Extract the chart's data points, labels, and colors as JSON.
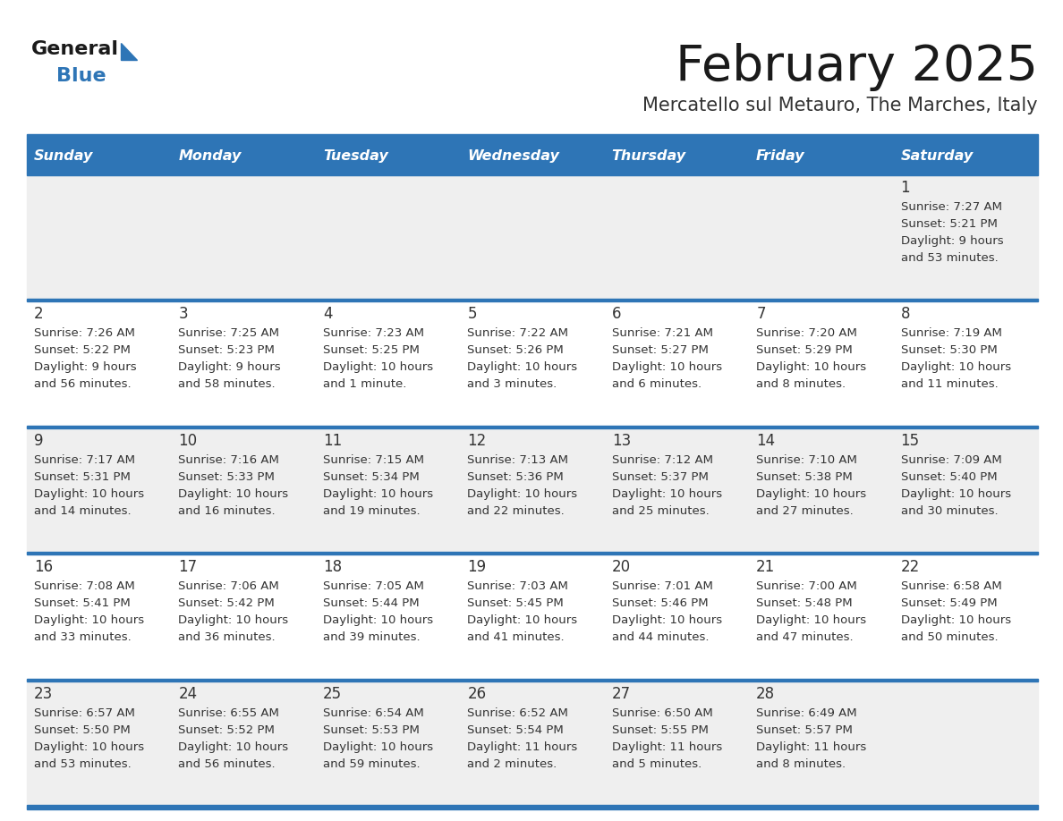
{
  "title": "February 2025",
  "subtitle": "Mercatello sul Metauro, The Marches, Italy",
  "days_of_week": [
    "Sunday",
    "Monday",
    "Tuesday",
    "Wednesday",
    "Thursday",
    "Friday",
    "Saturday"
  ],
  "header_bg": "#2E75B6",
  "header_text_color": "#FFFFFF",
  "cell_bg_white": "#FFFFFF",
  "cell_bg_gray": "#EFEFEF",
  "separator_color": "#2E75B6",
  "text_color": "#333333",
  "title_color": "#1a1a1a",
  "subtitle_color": "#333333",
  "logo_general_color": "#1a1a1a",
  "logo_blue_color": "#2E75B6",
  "calendar_data": [
    [
      {
        "day": null,
        "sunrise": null,
        "sunset": null,
        "daylight": null
      },
      {
        "day": null,
        "sunrise": null,
        "sunset": null,
        "daylight": null
      },
      {
        "day": null,
        "sunrise": null,
        "sunset": null,
        "daylight": null
      },
      {
        "day": null,
        "sunrise": null,
        "sunset": null,
        "daylight": null
      },
      {
        "day": null,
        "sunrise": null,
        "sunset": null,
        "daylight": null
      },
      {
        "day": null,
        "sunrise": null,
        "sunset": null,
        "daylight": null
      },
      {
        "day": 1,
        "sunrise": "7:27 AM",
        "sunset": "5:21 PM",
        "daylight": "9 hours\nand 53 minutes."
      }
    ],
    [
      {
        "day": 2,
        "sunrise": "7:26 AM",
        "sunset": "5:22 PM",
        "daylight": "9 hours\nand 56 minutes."
      },
      {
        "day": 3,
        "sunrise": "7:25 AM",
        "sunset": "5:23 PM",
        "daylight": "9 hours\nand 58 minutes."
      },
      {
        "day": 4,
        "sunrise": "7:23 AM",
        "sunset": "5:25 PM",
        "daylight": "10 hours\nand 1 minute."
      },
      {
        "day": 5,
        "sunrise": "7:22 AM",
        "sunset": "5:26 PM",
        "daylight": "10 hours\nand 3 minutes."
      },
      {
        "day": 6,
        "sunrise": "7:21 AM",
        "sunset": "5:27 PM",
        "daylight": "10 hours\nand 6 minutes."
      },
      {
        "day": 7,
        "sunrise": "7:20 AM",
        "sunset": "5:29 PM",
        "daylight": "10 hours\nand 8 minutes."
      },
      {
        "day": 8,
        "sunrise": "7:19 AM",
        "sunset": "5:30 PM",
        "daylight": "10 hours\nand 11 minutes."
      }
    ],
    [
      {
        "day": 9,
        "sunrise": "7:17 AM",
        "sunset": "5:31 PM",
        "daylight": "10 hours\nand 14 minutes."
      },
      {
        "day": 10,
        "sunrise": "7:16 AM",
        "sunset": "5:33 PM",
        "daylight": "10 hours\nand 16 minutes."
      },
      {
        "day": 11,
        "sunrise": "7:15 AM",
        "sunset": "5:34 PM",
        "daylight": "10 hours\nand 19 minutes."
      },
      {
        "day": 12,
        "sunrise": "7:13 AM",
        "sunset": "5:36 PM",
        "daylight": "10 hours\nand 22 minutes."
      },
      {
        "day": 13,
        "sunrise": "7:12 AM",
        "sunset": "5:37 PM",
        "daylight": "10 hours\nand 25 minutes."
      },
      {
        "day": 14,
        "sunrise": "7:10 AM",
        "sunset": "5:38 PM",
        "daylight": "10 hours\nand 27 minutes."
      },
      {
        "day": 15,
        "sunrise": "7:09 AM",
        "sunset": "5:40 PM",
        "daylight": "10 hours\nand 30 minutes."
      }
    ],
    [
      {
        "day": 16,
        "sunrise": "7:08 AM",
        "sunset": "5:41 PM",
        "daylight": "10 hours\nand 33 minutes."
      },
      {
        "day": 17,
        "sunrise": "7:06 AM",
        "sunset": "5:42 PM",
        "daylight": "10 hours\nand 36 minutes."
      },
      {
        "day": 18,
        "sunrise": "7:05 AM",
        "sunset": "5:44 PM",
        "daylight": "10 hours\nand 39 minutes."
      },
      {
        "day": 19,
        "sunrise": "7:03 AM",
        "sunset": "5:45 PM",
        "daylight": "10 hours\nand 41 minutes."
      },
      {
        "day": 20,
        "sunrise": "7:01 AM",
        "sunset": "5:46 PM",
        "daylight": "10 hours\nand 44 minutes."
      },
      {
        "day": 21,
        "sunrise": "7:00 AM",
        "sunset": "5:48 PM",
        "daylight": "10 hours\nand 47 minutes."
      },
      {
        "day": 22,
        "sunrise": "6:58 AM",
        "sunset": "5:49 PM",
        "daylight": "10 hours\nand 50 minutes."
      }
    ],
    [
      {
        "day": 23,
        "sunrise": "6:57 AM",
        "sunset": "5:50 PM",
        "daylight": "10 hours\nand 53 minutes."
      },
      {
        "day": 24,
        "sunrise": "6:55 AM",
        "sunset": "5:52 PM",
        "daylight": "10 hours\nand 56 minutes."
      },
      {
        "day": 25,
        "sunrise": "6:54 AM",
        "sunset": "5:53 PM",
        "daylight": "10 hours\nand 59 minutes."
      },
      {
        "day": 26,
        "sunrise": "6:52 AM",
        "sunset": "5:54 PM",
        "daylight": "11 hours\nand 2 minutes."
      },
      {
        "day": 27,
        "sunrise": "6:50 AM",
        "sunset": "5:55 PM",
        "daylight": "11 hours\nand 5 minutes."
      },
      {
        "day": 28,
        "sunrise": "6:49 AM",
        "sunset": "5:57 PM",
        "daylight": "11 hours\nand 8 minutes."
      },
      {
        "day": null,
        "sunrise": null,
        "sunset": null,
        "daylight": null
      }
    ]
  ]
}
